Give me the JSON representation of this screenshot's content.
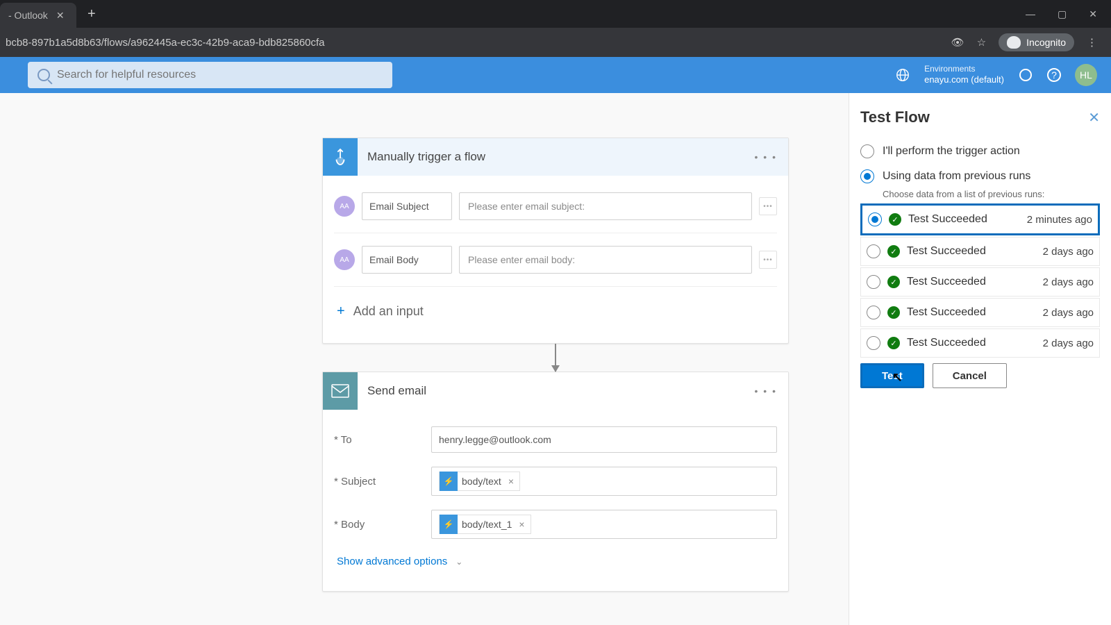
{
  "browser": {
    "tab_title": "- Outlook",
    "url": "bcb8-897b1a5d8b63/flows/a962445a-ec3c-42b9-aca9-bdb825860cfa",
    "incognito_label": "Incognito"
  },
  "header": {
    "search_placeholder": "Search for helpful resources",
    "env_label": "Environments",
    "env_name": "enayu.com (default)",
    "avatar": "HL"
  },
  "trigger": {
    "title": "Manually trigger a flow",
    "inputs": [
      {
        "label": "Email Subject",
        "placeholder": "Please enter email subject:"
      },
      {
        "label": "Email Body",
        "placeholder": "Please enter email body:"
      }
    ],
    "add_input": "Add an input"
  },
  "action": {
    "title": "Send email",
    "fields": {
      "to_label": "* To",
      "to_value": "henry.legge@outlook.com",
      "subject_label": "* Subject",
      "subject_token": "body/text",
      "body_label": "* Body",
      "body_token": "body/text_1"
    },
    "advanced": "Show advanced options"
  },
  "panel": {
    "title": "Test Flow",
    "opt_manual": "I'll perform the trigger action",
    "opt_previous": "Using data from previous runs",
    "sub": "Choose data from a list of previous runs:",
    "runs": [
      {
        "label": "Test Succeeded",
        "time": "2 minutes ago",
        "selected": true,
        "highlight": true
      },
      {
        "label": "Test Succeeded",
        "time": "2 days ago",
        "selected": false,
        "highlight": false
      },
      {
        "label": "Test Succeeded",
        "time": "2 days ago",
        "selected": false,
        "highlight": false
      },
      {
        "label": "Test Succeeded",
        "time": "2 days ago",
        "selected": false,
        "highlight": false
      },
      {
        "label": "Test Succeeded",
        "time": "2 days ago",
        "selected": false,
        "highlight": false
      }
    ],
    "btn_test": "Test",
    "btn_cancel": "Cancel"
  }
}
